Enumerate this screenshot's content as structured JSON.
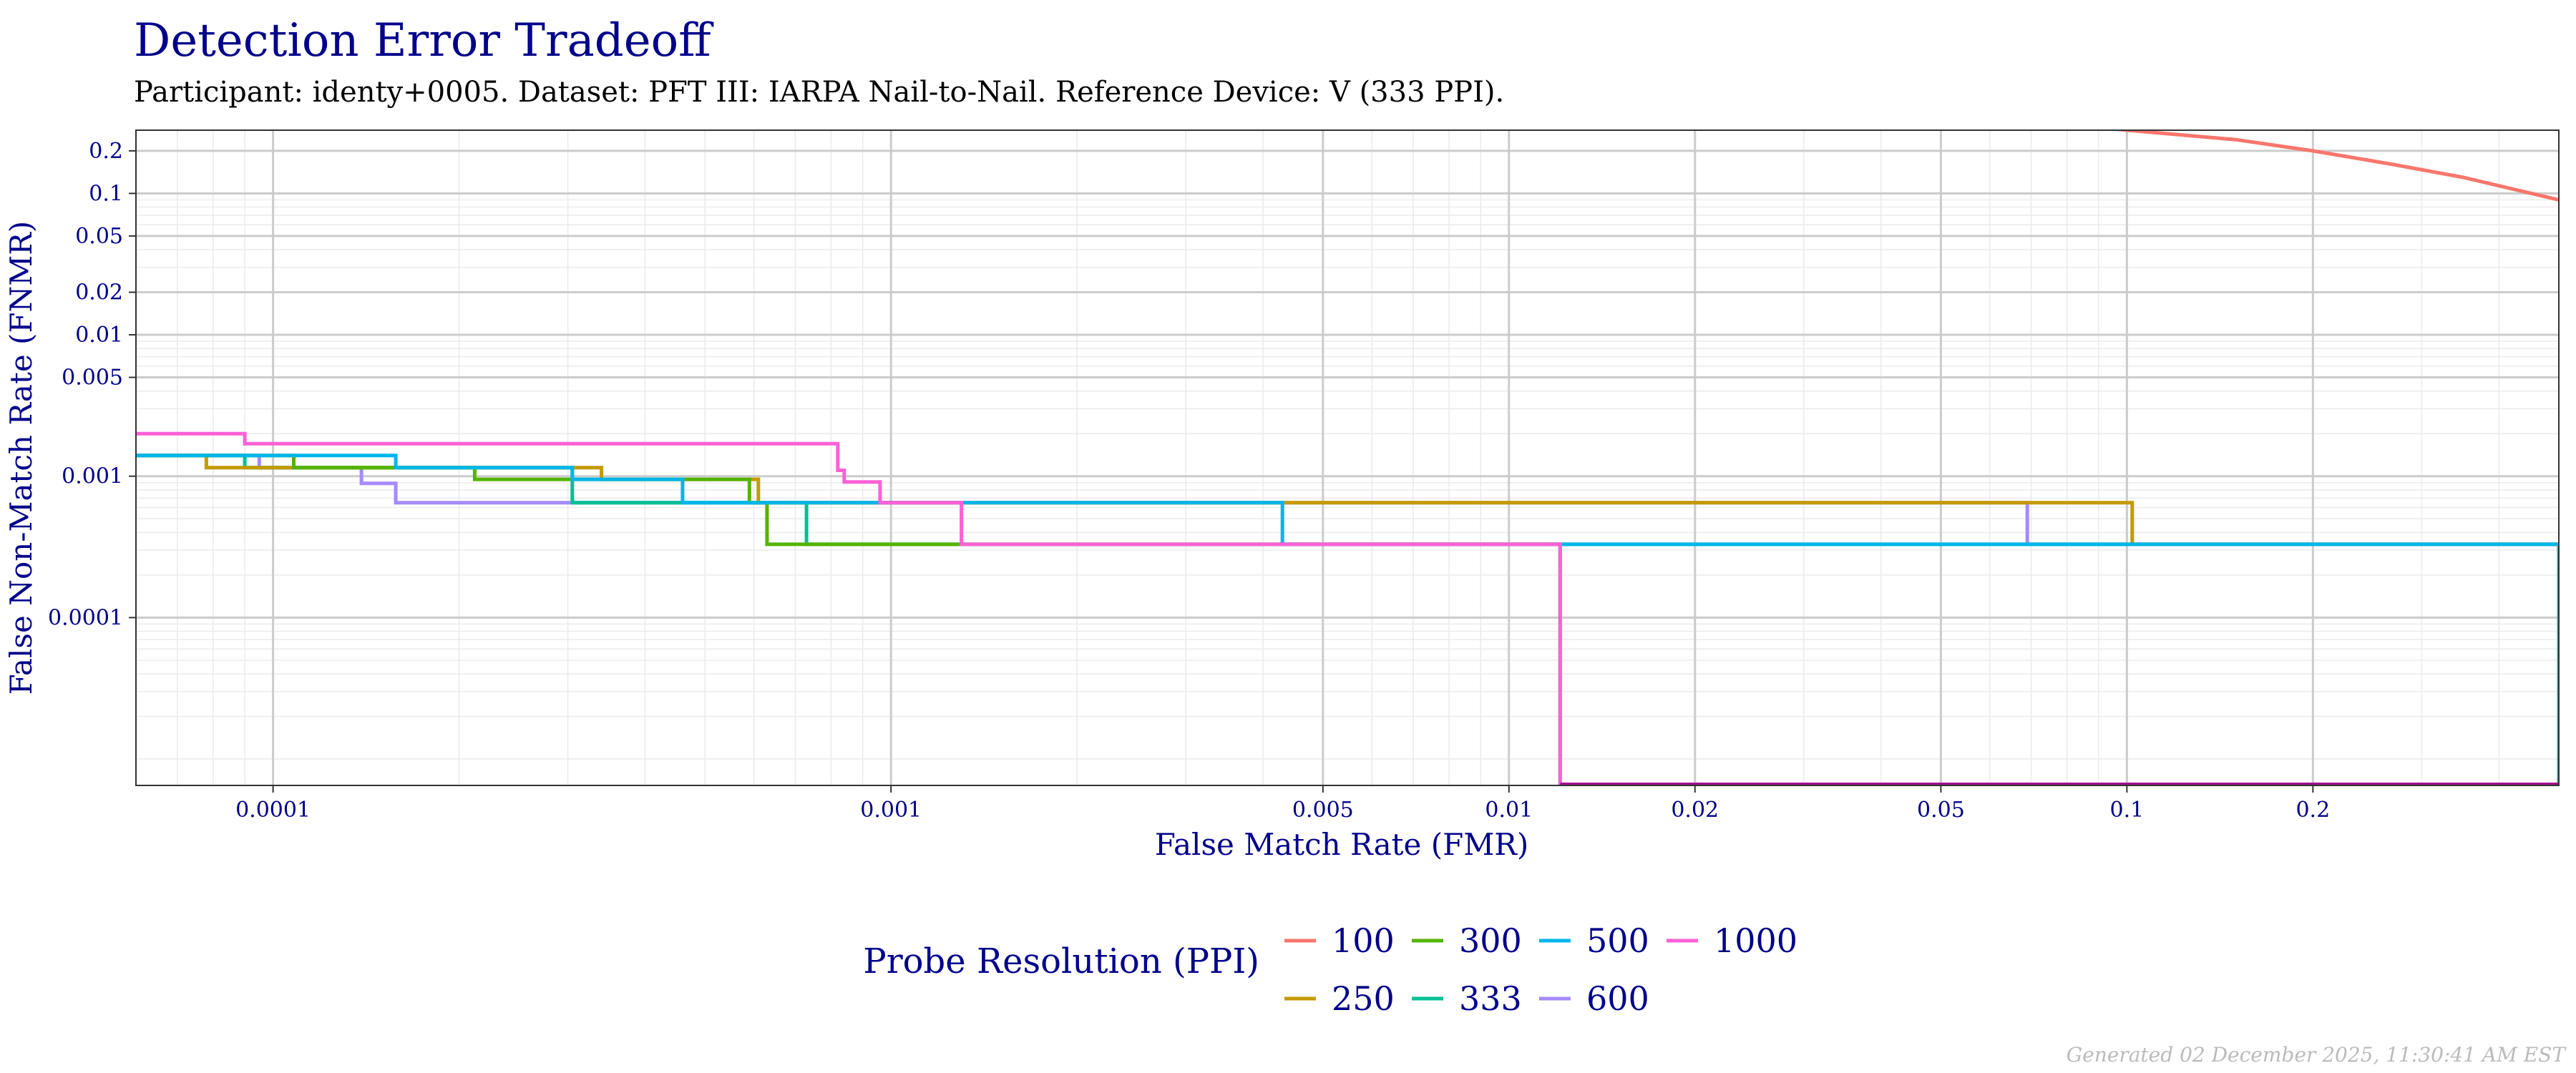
{
  "title": "Detection Error Tradeoff",
  "subtitle": "Participant: identy+0005. Dataset: PFT III: IARPA Nail-to-Nail. Reference Device: V (333 PPI).",
  "caption": "Generated 02 December 2025, 11:30:41 AM EST",
  "chart_data": {
    "type": "line",
    "x_scale": "log",
    "y_scale": "log",
    "xlabel": "False Match Rate (FMR)",
    "ylabel": "False Non-Match Rate (FNMR)",
    "xlim": [
      6e-05,
      0.5
    ],
    "ylim": [
      6.5e-06,
      0.28
    ],
    "x_ticks": [
      0.0001,
      0.001,
      0.005,
      0.01,
      0.02,
      0.05,
      0.1,
      0.2
    ],
    "x_tick_labels": [
      "0.0001",
      "0.001",
      "0.005",
      "0.01",
      "0.02",
      "0.05",
      "0.1",
      "0.2"
    ],
    "y_ticks": [
      0.0001,
      0.001,
      0.005,
      0.01,
      0.02,
      0.05,
      0.1,
      0.2
    ],
    "y_tick_labels": [
      "0.0001",
      "0.001",
      "0.005",
      "0.01",
      "0.02",
      "0.05",
      "0.1",
      "0.2"
    ],
    "grid": true,
    "legend_title": "Probe Resolution (PPI)",
    "legend_position": "bottom",
    "series": [
      {
        "name": "100",
        "color": "#F8766D",
        "points": [
          [
            0.07,
            0.33
          ],
          [
            0.1,
            0.28
          ],
          [
            0.15,
            0.24
          ],
          [
            0.2,
            0.2
          ],
          [
            0.27,
            0.16
          ],
          [
            0.35,
            0.13
          ],
          [
            0.5,
            0.09
          ]
        ]
      },
      {
        "name": "250",
        "color": "#C49A00",
        "points": [
          [
            6e-05,
            0.0014
          ],
          [
            7.8e-05,
            0.0014
          ],
          [
            7.8e-05,
            0.00115
          ],
          [
            0.00034,
            0.00115
          ],
          [
            0.00034,
            0.00095
          ],
          [
            0.00061,
            0.00095
          ],
          [
            0.00061,
            0.00065
          ],
          [
            0.102,
            0.00065
          ],
          [
            0.102,
            0.00033
          ],
          [
            0.5,
            0.00033
          ]
        ]
      },
      {
        "name": "300",
        "color": "#53B400",
        "points": [
          [
            6e-05,
            0.0014
          ],
          [
            0.000108,
            0.0014
          ],
          [
            0.000108,
            0.00115
          ],
          [
            0.000212,
            0.00115
          ],
          [
            0.000212,
            0.00095
          ],
          [
            0.00059,
            0.00095
          ],
          [
            0.00059,
            0.00065
          ],
          [
            0.00063,
            0.00065
          ],
          [
            0.00063,
            0.00033
          ],
          [
            0.0121,
            0.00033
          ],
          [
            0.0121,
            6.5e-06
          ]
        ]
      },
      {
        "name": "333",
        "color": "#00C094",
        "points": [
          [
            6e-05,
            0.0014
          ],
          [
            9e-05,
            0.0014
          ],
          [
            9e-05,
            0.00115
          ],
          [
            0.000305,
            0.00115
          ],
          [
            0.000305,
            0.00065
          ],
          [
            0.00073,
            0.00065
          ],
          [
            0.00073,
            0.00033
          ],
          [
            0.5,
            0.00033
          ],
          [
            0.5,
            6.5e-06
          ]
        ]
      },
      {
        "name": "500",
        "color": "#00B6EB",
        "points": [
          [
            6e-05,
            0.0014
          ],
          [
            9.5e-05,
            0.0014
          ],
          [
            9.5e-05,
            0.0014
          ],
          [
            0.000158,
            0.0014
          ],
          [
            0.000158,
            0.00115
          ],
          [
            0.000305,
            0.00115
          ],
          [
            0.000305,
            0.00095
          ],
          [
            0.00046,
            0.00095
          ],
          [
            0.00046,
            0.00065
          ],
          [
            0.0043,
            0.00065
          ],
          [
            0.0043,
            0.00033
          ],
          [
            0.5,
            0.00033
          ]
        ]
      },
      {
        "name": "600",
        "color": "#A58AFF",
        "points": [
          [
            6e-05,
            0.0014
          ],
          [
            9.5e-05,
            0.0014
          ],
          [
            9.5e-05,
            0.00115
          ],
          [
            0.000139,
            0.00115
          ],
          [
            0.000139,
            0.00089
          ],
          [
            0.000158,
            0.00089
          ],
          [
            0.000158,
            0.00065
          ],
          [
            0.069,
            0.00065
          ],
          [
            0.069,
            0.00033
          ],
          [
            0.5,
            0.00033
          ]
        ]
      },
      {
        "name": "1000",
        "color": "#FB61D7",
        "points": [
          [
            6e-05,
            0.002
          ],
          [
            9e-05,
            0.002
          ],
          [
            9e-05,
            0.0017
          ],
          [
            0.00082,
            0.0017
          ],
          [
            0.00082,
            0.0011
          ],
          [
            0.00084,
            0.0011
          ],
          [
            0.00084,
            0.00091
          ],
          [
            0.00096,
            0.00091
          ],
          [
            0.00096,
            0.00065
          ],
          [
            0.0013,
            0.00065
          ],
          [
            0.0013,
            0.00033
          ],
          [
            0.0121,
            0.00033
          ],
          [
            0.0121,
            6.5e-06
          ]
        ]
      }
    ],
    "baseline": {
      "color": "#A01090",
      "y": 6.5e-06,
      "x_from": 0.0121,
      "x_to": 0.5
    }
  }
}
